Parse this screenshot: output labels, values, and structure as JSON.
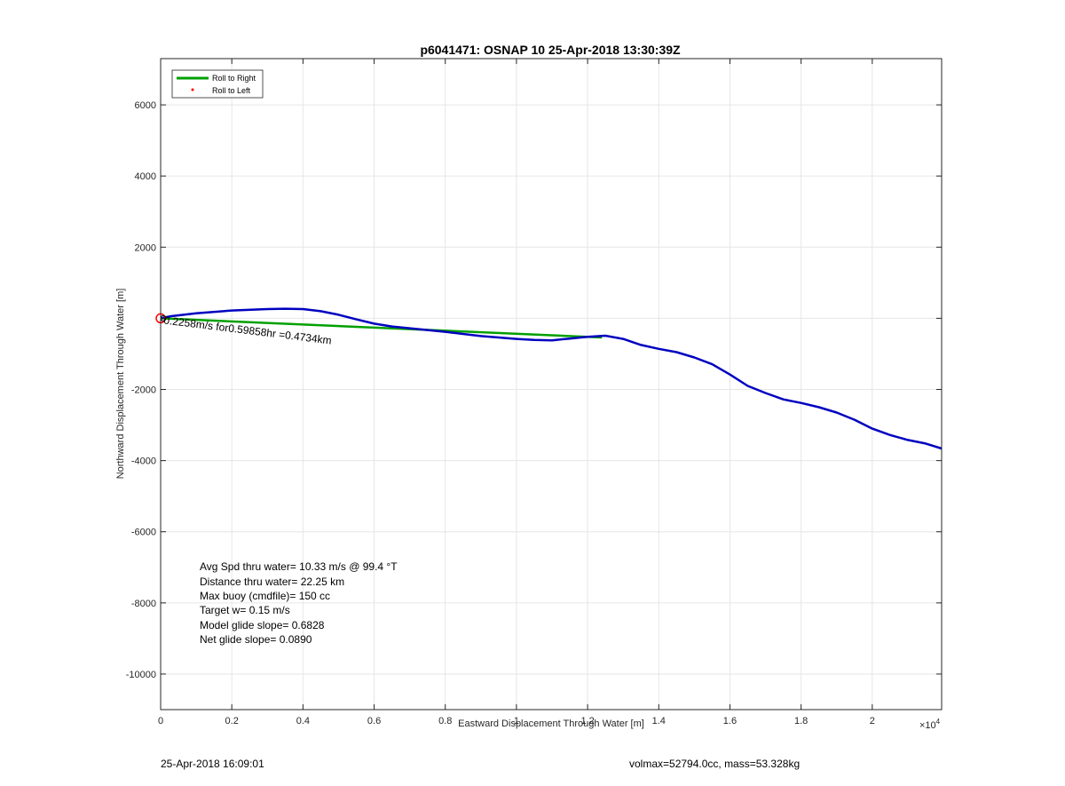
{
  "chart_data": {
    "type": "line",
    "title": "p6041471: OSNAP 10 25-Apr-2018 13:30:39Z",
    "xlabel": "Eastward Displacement Through Water [m]",
    "ylabel": "Northward Displacement Through Water [m]",
    "x_exponent_label": "×10",
    "x_exponent": "4",
    "xlim": [
      0,
      21950
    ],
    "ylim": [
      -11000,
      7300
    ],
    "x_ticks": [
      0,
      2000,
      4000,
      6000,
      8000,
      10000,
      12000,
      14000,
      16000,
      18000,
      20000
    ],
    "x_tick_labels": [
      "0",
      "0.2",
      "0.4",
      "0.6",
      "0.8",
      "1",
      "1.2",
      "1.4",
      "1.6",
      "1.8",
      "2"
    ],
    "y_ticks": [
      -10000,
      -8000,
      -6000,
      -4000,
      -2000,
      0,
      2000,
      4000,
      6000
    ],
    "y_tick_labels": [
      "-10000",
      "-8000",
      "-6000",
      "-4000",
      "-2000",
      "",
      "2000",
      "4000",
      "6000"
    ],
    "grid": true,
    "legend_position": "top-left",
    "legend": [
      {
        "label": "Roll to Right",
        "color": "#00a000",
        "style": "line"
      },
      {
        "label": "Roll to Left",
        "color": "#ff0000",
        "style": "dot"
      }
    ],
    "series": [
      {
        "name": "Roll to Right",
        "color": "#00a000",
        "x": [
          0,
          12400
        ],
        "y": [
          0,
          -540
        ]
      },
      {
        "color": "#0000c0",
        "x": [
          0,
          300,
          1000,
          2000,
          3000,
          3500,
          4000,
          4500,
          5000,
          5500,
          6000,
          6500,
          7000,
          8000,
          9000,
          10000,
          10500,
          11000,
          11500,
          12000,
          12500,
          13000,
          13500,
          14000,
          14500,
          15000,
          15500,
          16000,
          16500,
          17000,
          17500,
          18000,
          18500,
          19000,
          19500,
          20000,
          20500,
          21000,
          21500,
          21950
        ],
        "y": [
          0,
          60,
          140,
          220,
          260,
          270,
          260,
          200,
          100,
          -30,
          -150,
          -230,
          -280,
          -380,
          -500,
          -580,
          -610,
          -620,
          -570,
          -520,
          -490,
          -580,
          -750,
          -860,
          -950,
          -1100,
          -1290,
          -1580,
          -1900,
          -2100,
          -2280,
          -2380,
          -2500,
          -2650,
          -2850,
          -3100,
          -3280,
          -3420,
          -3520,
          -3660
        ]
      }
    ],
    "markers": {
      "red_circle": {
        "x": 0,
        "y": 0,
        "color": "#ff0000"
      }
    },
    "annotation": {
      "text": "0.2258m/s for0.59858hr =0.4734km",
      "x": 0,
      "y": 0,
      "rotation_deg": 7
    },
    "stats": [
      "Avg Spd thru water= 10.33 m/s @  99.4 °T",
      "Distance thru water= 22.25 km",
      "Max buoy (cmdfile)= 150 cc",
      "Target w= 0.15 m/s",
      "Model glide slope= 0.6828",
      "Net glide slope= 0.0890"
    ]
  },
  "footer": {
    "left": "25-Apr-2018 16:09:01",
    "right": "volmax=52794.0cc, mass=53.328kg"
  },
  "colors": {
    "axis": "#262626",
    "grid": "#e6e6e6",
    "track": "#0000c0",
    "roll_right": "#00a000",
    "roll_left": "#ff0000"
  }
}
